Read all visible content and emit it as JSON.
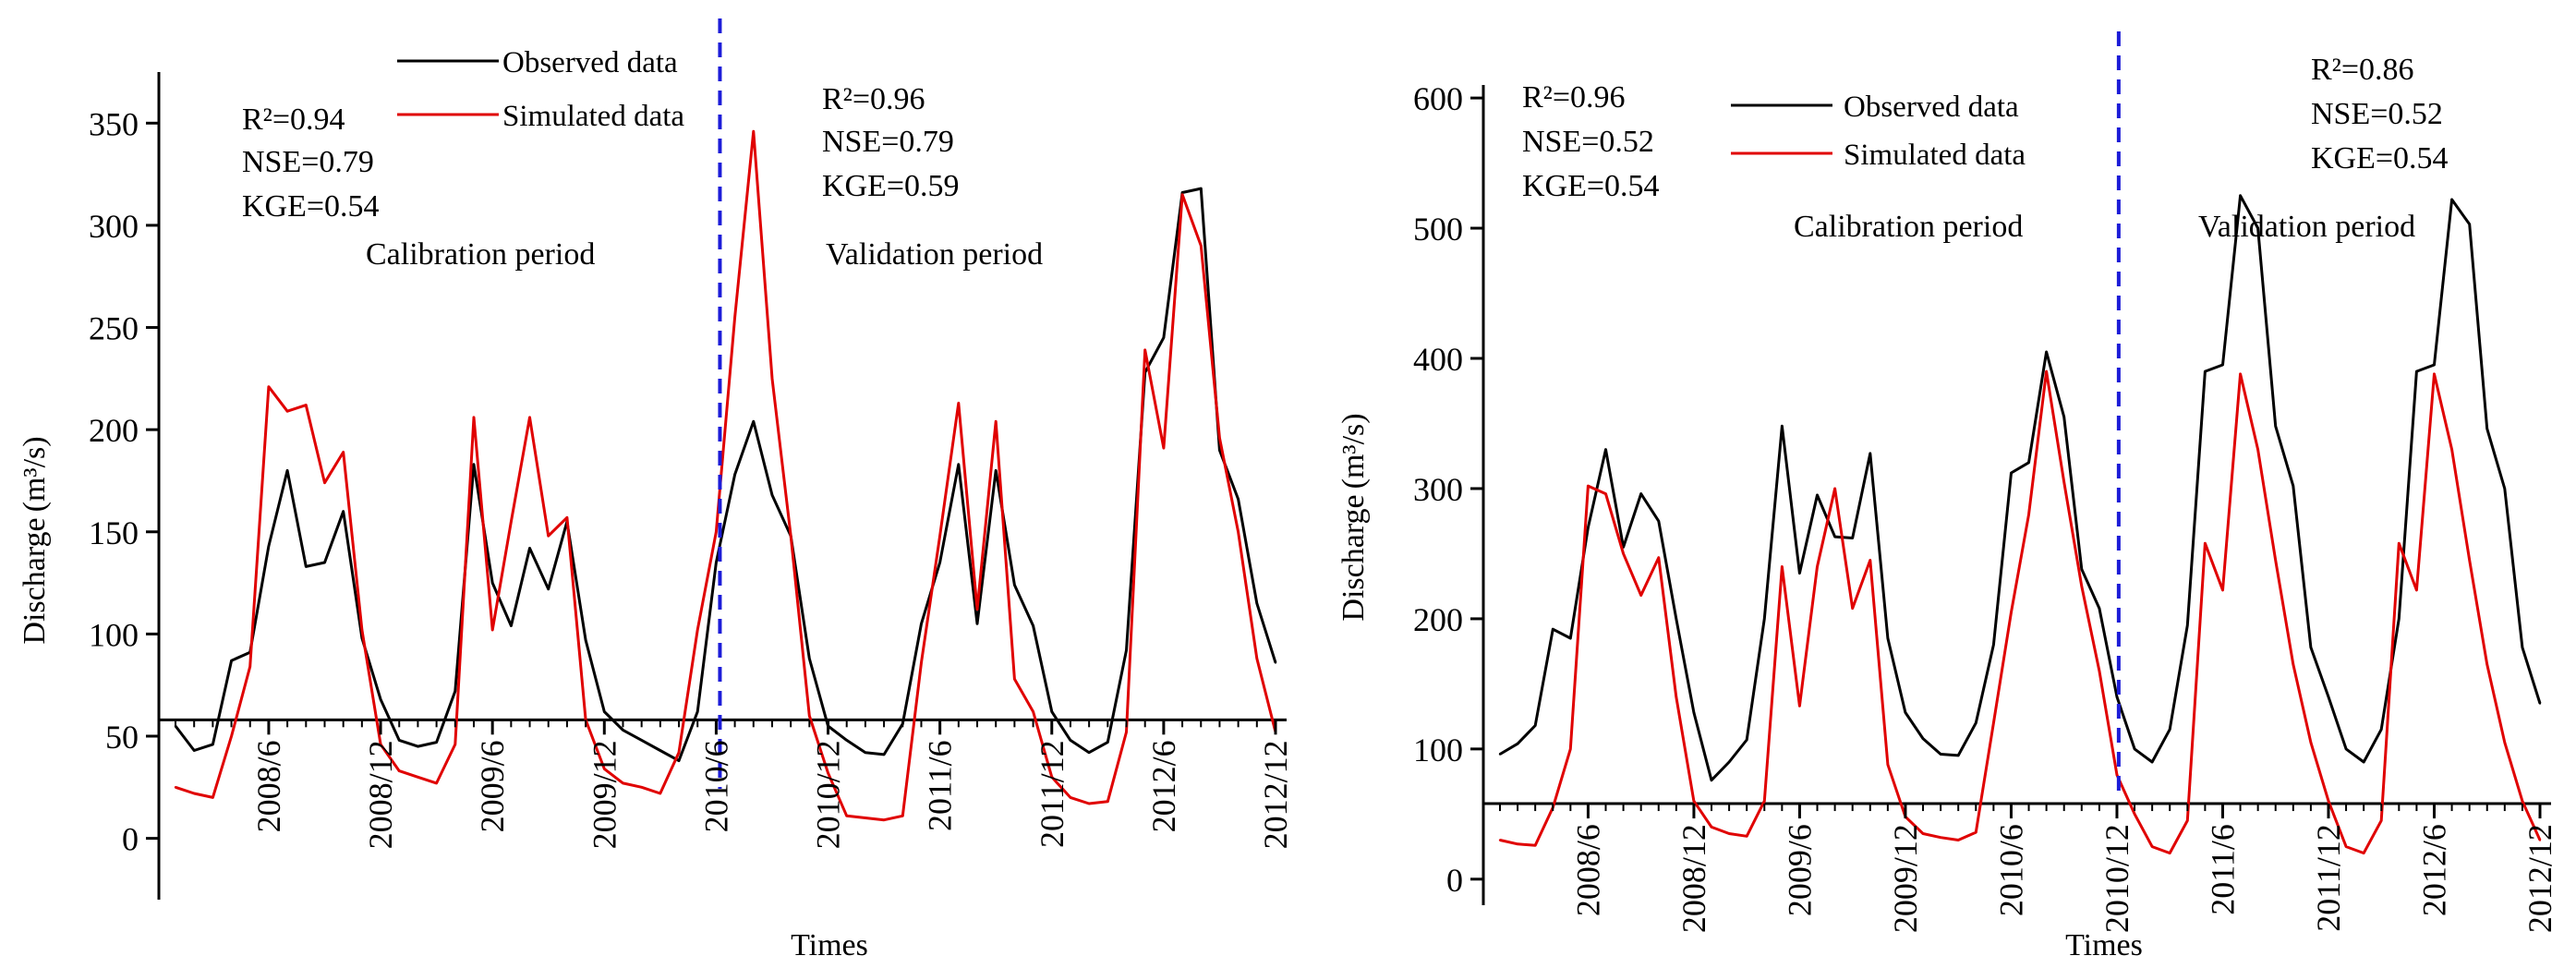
{
  "chart_data": [
    {
      "type": "line",
      "ylabel": "Discharge",
      "ylabel_unit": "(m³/s)",
      "xlabel": "Times",
      "ylim": [
        -30,
        375
      ],
      "yticks": [
        0,
        50,
        100,
        150,
        200,
        250,
        300,
        350
      ],
      "x_tick_labels": [
        "2008/6",
        "2008/12",
        "2009/6",
        "2009/12",
        "2010/6",
        "2010/12",
        "2011/6",
        "2011/12",
        "2012/6",
        "2012/12"
      ],
      "x_tick_index": [
        5,
        11,
        17,
        23,
        29,
        35,
        41,
        47,
        53,
        59
      ],
      "split_index": 29.2,
      "baseline_value": 58,
      "calibration_label": "Calibration period",
      "validation_label": "Validation period",
      "calibration_stats": [
        "R²=0.94",
        "NSE=0.79",
        "KGE=0.54"
      ],
      "validation_stats": [
        "R²=0.96",
        "NSE=0.79",
        "KGE=0.59"
      ],
      "legend": [
        "Observed data",
        "Simulated data"
      ],
      "series": [
        {
          "name": "Observed data",
          "color": "#000000",
          "values": [
            55,
            43,
            46,
            87,
            91,
            143,
            180,
            133,
            135,
            160,
            98,
            68,
            48,
            45,
            47,
            72,
            183,
            125,
            104,
            142,
            122,
            155,
            97,
            62,
            53,
            48,
            43,
            38,
            62,
            135,
            178,
            204,
            168,
            148,
            88,
            55,
            48,
            42,
            41,
            56,
            105,
            135,
            183,
            105,
            180,
            124,
            104,
            62,
            48,
            42,
            47,
            92,
            228,
            245,
            316,
            318,
            190,
            166,
            115,
            86
          ]
        },
        {
          "name": "Simulated data",
          "color": "#e00000",
          "values": [
            25,
            22,
            20,
            50,
            84,
            221,
            209,
            212,
            174,
            189,
            102,
            46,
            33,
            30,
            27,
            46,
            206,
            102,
            155,
            206,
            148,
            157,
            58,
            34,
            27,
            25,
            22,
            42,
            102,
            150,
            255,
            346,
            225,
            148,
            60,
            32,
            11,
            10,
            9,
            11,
            86,
            148,
            213,
            112,
            204,
            78,
            62,
            30,
            20,
            17,
            18,
            52,
            239,
            191,
            315,
            290,
            196,
            150,
            88,
            52
          ]
        }
      ]
    },
    {
      "type": "line",
      "ylabel": "Discharge",
      "ylabel_unit": "(m³/s)",
      "xlabel": "Times",
      "ylim": [
        -20,
        610
      ],
      "yticks": [
        0,
        100,
        200,
        300,
        400,
        500,
        600
      ],
      "x_tick_labels": [
        "2008/6",
        "2008/12",
        "2009/6",
        "2009/12",
        "2010/6",
        "2010/12",
        "2011/6",
        "2011/12",
        "2012/6",
        "2012/12"
      ],
      "x_tick_index": [
        5,
        11,
        17,
        23,
        29,
        35,
        41,
        47,
        53,
        59
      ],
      "split_index": 35.1,
      "baseline_value": 58,
      "calibration_label": "Calibration period",
      "validation_label": "Validation period",
      "calibration_stats": [
        "R²=0.96",
        "NSE=0.52",
        "KGE=0.54"
      ],
      "validation_stats": [
        "R²=0.86",
        "NSE=0.52",
        "KGE=0.54"
      ],
      "legend": [
        "Observed data",
        "Simulated data"
      ],
      "series": [
        {
          "name": "Observed data",
          "color": "#000000",
          "values": [
            96,
            104,
            118,
            192,
            185,
            270,
            330,
            255,
            296,
            275,
            200,
            128,
            76,
            90,
            107,
            200,
            348,
            235,
            295,
            263,
            262,
            327,
            185,
            128,
            108,
            96,
            95,
            120,
            180,
            312,
            320,
            405,
            355,
            238,
            208,
            140,
            100,
            90,
            115,
            195,
            390,
            395,
            525,
            500,
            348,
            302,
            178,
            140,
            100,
            90,
            115,
            200,
            390,
            395,
            522,
            503,
            346,
            300,
            178,
            135
          ]
        },
        {
          "name": "Simulated data",
          "color": "#e00000",
          "values": [
            30,
            27,
            26,
            55,
            100,
            302,
            296,
            250,
            218,
            247,
            140,
            60,
            40,
            35,
            33,
            60,
            240,
            133,
            240,
            300,
            208,
            245,
            88,
            48,
            35,
            32,
            30,
            36,
            120,
            205,
            280,
            390,
            305,
            225,
            160,
            80,
            50,
            25,
            20,
            45,
            258,
            222,
            388,
            330,
            245,
            165,
            105,
            60,
            25,
            20,
            45,
            258,
            222,
            388,
            330,
            245,
            165,
            105,
            60,
            30
          ]
        }
      ]
    }
  ]
}
